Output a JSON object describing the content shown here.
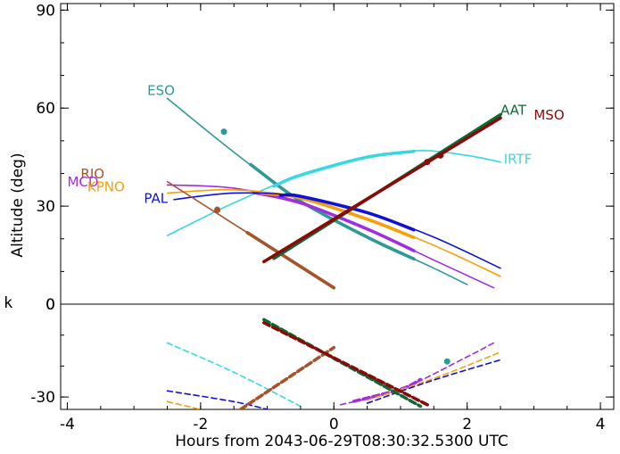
{
  "chart_data": {
    "type": "line",
    "title": "",
    "xlabel": "Hours from 2043-06-29T08:30:32.5300 UTC",
    "ylabel": "Altitude (deg)",
    "xlim": [
      -4.1,
      4.2
    ],
    "xticks": [
      -4,
      -2,
      0,
      2,
      4
    ],
    "upper_panel": {
      "ylim": [
        0,
        92
      ],
      "yticks": [
        0,
        30,
        60,
        90
      ]
    },
    "lower_panel": {
      "ylim": [
        -34,
        0
      ],
      "yticks": [
        -30
      ]
    },
    "left_mark": "k",
    "series": [
      {
        "name": "ESO",
        "color": "#2e9a95",
        "upper": {
          "x": [
            -2.5,
            -1.5,
            -0.5,
            0.5,
            1.5,
            2.0
          ],
          "y": [
            63,
            46.5,
            31.5,
            20.5,
            11,
            6
          ]
        },
        "lower": null,
        "thick_upper": [
          -1.25,
          1.2
        ],
        "thick_lower": null,
        "marker_upper": [
          -1.65,
          52.8
        ],
        "marker_lower": [
          1.7,
          -18.5
        ]
      },
      {
        "name": "IRTF",
        "color": "#38d8e0",
        "upper": {
          "x": [
            -2.5,
            -1.5,
            -0.5,
            0.5,
            1.3,
            2.0,
            2.5
          ],
          "y": [
            21,
            31,
            39.5,
            45,
            47,
            45.5,
            43.5
          ]
        },
        "lower": {
          "x": [
            -2.5,
            -1.5,
            -0.5
          ],
          "y": [
            -12.5,
            -22,
            -33
          ]
        },
        "thick_upper": [
          -0.9,
          1.2
        ],
        "thick_lower": null,
        "marker_upper": [
          -1.75,
          29
        ],
        "marker_lower": null
      },
      {
        "name": "MCD",
        "color": "#a02ee0",
        "upper": {
          "x": [
            -2.5,
            -1.5,
            -0.5,
            0.5,
            1.5,
            2.4
          ],
          "y": [
            36.5,
            35.5,
            31,
            23,
            13.5,
            5
          ]
        },
        "lower": {
          "x": [
            0.1,
            1.0,
            2.0,
            2.4
          ],
          "y": [
            -32.5,
            -27.5,
            -17,
            -12.5
          ]
        },
        "thick_upper": [
          -1.2,
          1.2
        ],
        "thick_lower": [
          0.3,
          1.3
        ],
        "marker_upper": null,
        "marker_lower": null
      },
      {
        "name": "KPNO",
        "color": "#f5a10a",
        "upper": {
          "x": [
            -2.5,
            -1.5,
            -0.5,
            0.5,
            1.5,
            2.5
          ],
          "y": [
            34,
            35,
            32.5,
            26,
            18,
            8.5
          ]
        },
        "lower": {
          "x": [
            -2.5,
            -2.0
          ],
          "y": [
            -31.5,
            -34
          ]
        },
        "lower2": {
          "x": [
            0.5,
            1.5,
            2.5
          ],
          "y": [
            -31,
            -24,
            -15.5
          ]
        },
        "thick_upper": [
          -1.1,
          1.2
        ],
        "thick_lower": null,
        "marker_upper": null,
        "marker_lower": null
      },
      {
        "name": "PAL",
        "color": "#1010d8",
        "upper": {
          "x": [
            -2.4,
            -1.5,
            -0.5,
            0.5,
            1.5,
            2.5
          ],
          "y": [
            32,
            34,
            33,
            28,
            20.5,
            11
          ]
        },
        "lower": {
          "x": [
            -2.5,
            -1.5,
            -1.0
          ],
          "y": [
            -28,
            -31.5,
            -34
          ]
        },
        "lower2": {
          "x": [
            0.5,
            1.5,
            2.5
          ],
          "y": [
            -32,
            -24.5,
            -18
          ]
        },
        "thick_upper": [
          -0.8,
          1.2
        ],
        "thick_lower": null,
        "marker_upper": null,
        "marker_lower": null
      },
      {
        "name": "RIO",
        "color": "#a8522a",
        "upper": {
          "x": [
            -2.5,
            0.0
          ],
          "y": [
            37.5,
            5
          ]
        },
        "lower": {
          "x": [
            -1.4,
            0.0
          ],
          "y": [
            -34,
            -14
          ]
        },
        "thick_upper": [
          -1.3,
          0.0
        ],
        "thick_lower": [
          -1.4,
          0.0
        ],
        "marker_upper": [
          -1.75,
          28.8
        ],
        "marker_lower": null
      },
      {
        "name": "AAT",
        "color": "#0c6b34",
        "upper": {
          "x": [
            -0.9,
            2.5
          ],
          "y": [
            14,
            58
          ]
        },
        "lower": {
          "x": [
            -1.05,
            1.3
          ],
          "y": [
            -5,
            -33
          ]
        },
        "thick_upper": [
          -0.9,
          2.5
        ],
        "thick_lower": [
          -1.05,
          1.3
        ],
        "marker_upper": null,
        "marker_lower": null
      },
      {
        "name": "MSO",
        "color": "#8a0a0a",
        "upper": {
          "x": [
            -1.05,
            2.5
          ],
          "y": [
            13,
            57
          ]
        },
        "lower": {
          "x": [
            -1.05,
            1.45
          ],
          "y": [
            -6,
            -33
          ]
        },
        "thick_upper": [
          -1.05,
          2.5
        ],
        "thick_lower": [
          -1.05,
          1.45
        ],
        "marker_upper": [
          1.4,
          43.5
        ],
        "marker_lower": null
      }
    ],
    "extra_markers": [
      {
        "color": "#8a0a0a",
        "at": [
          1.6,
          45.5
        ]
      }
    ],
    "labels": [
      {
        "name": "ESO",
        "color": "#2e9a95",
        "at": [
          -2.8,
          64
        ]
      },
      {
        "name": "AAT",
        "color": "#0c6b34",
        "at": [
          2.5,
          58
        ]
      },
      {
        "name": "MSO",
        "color": "#8a0a0a",
        "at": [
          3.0,
          56.5
        ]
      },
      {
        "name": "IRTF",
        "color": "#38d8e0",
        "at": [
          2.55,
          43
        ]
      },
      {
        "name": "RIO",
        "color": "#a8522a",
        "at": [
          -3.8,
          38.5
        ]
      },
      {
        "name": "MCD",
        "color": "#a02ee0",
        "at": [
          -4.0,
          36
        ]
      },
      {
        "name": "KPNO",
        "color": "#f5a10a",
        "at": [
          -3.7,
          34.5
        ]
      },
      {
        "name": "PAL",
        "color": "#1010d8",
        "at": [
          -2.85,
          31
        ]
      }
    ]
  }
}
